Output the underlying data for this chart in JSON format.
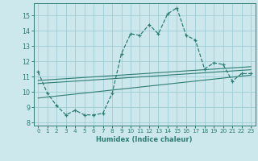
{
  "xlabel": "Humidex (Indice chaleur)",
  "background_color": "#cce8ec",
  "grid_color": "#9ecdd4",
  "line_color": "#2e7d72",
  "xlim": [
    -0.5,
    23.5
  ],
  "ylim": [
    7.8,
    15.8
  ],
  "yticks": [
    8,
    9,
    10,
    11,
    12,
    13,
    14,
    15
  ],
  "xticks": [
    0,
    1,
    2,
    3,
    4,
    5,
    6,
    7,
    8,
    9,
    10,
    11,
    12,
    13,
    14,
    15,
    16,
    17,
    18,
    19,
    20,
    21,
    22,
    23
  ],
  "main_x": [
    0,
    1,
    2,
    3,
    4,
    5,
    6,
    7,
    8,
    9,
    10,
    11,
    12,
    13,
    14,
    15,
    16,
    17,
    18,
    19,
    20,
    21,
    22,
    23
  ],
  "main_y": [
    11.3,
    9.9,
    9.1,
    8.5,
    8.8,
    8.5,
    8.5,
    8.6,
    9.9,
    12.5,
    13.8,
    13.7,
    14.4,
    13.8,
    15.1,
    15.5,
    13.7,
    13.4,
    11.5,
    11.9,
    11.8,
    10.7,
    11.2,
    11.2
  ],
  "line1_x": [
    0,
    23
  ],
  "line1_y": [
    10.55,
    11.45
  ],
  "line2_x": [
    0,
    23
  ],
  "line2_y": [
    10.75,
    11.65
  ],
  "line3_x": [
    0,
    23
  ],
  "line3_y": [
    9.6,
    11.1
  ]
}
